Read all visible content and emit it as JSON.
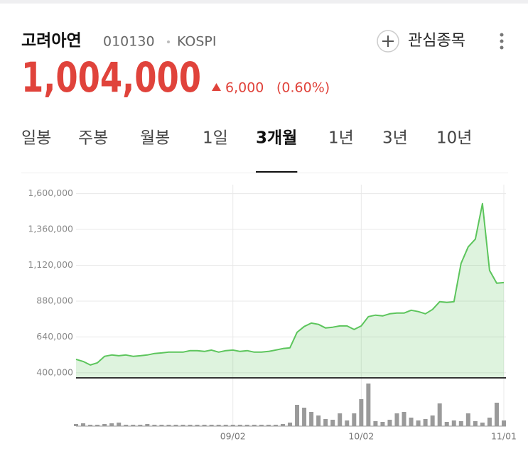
{
  "header": {
    "name": "고려아연",
    "code": "010130",
    "market": "KOSPI",
    "watch_button": "관심종목"
  },
  "price": {
    "current": "1,004,000",
    "change": "6,000",
    "change_pct": "(0.60%)"
  },
  "tabs": [
    "일봉",
    "주봉",
    "월봉",
    "1일",
    "3개월",
    "1년",
    "3년",
    "10년"
  ],
  "active_tab": 4,
  "chart_data": {
    "type": "line",
    "categories": [
      null,
      null,
      null,
      null,
      null,
      null,
      null,
      null,
      null,
      null,
      null,
      null,
      null,
      null,
      null,
      null,
      null,
      null,
      null,
      null,
      null,
      null,
      "09/02",
      null,
      null,
      null,
      null,
      null,
      null,
      null,
      null,
      null,
      null,
      null,
      null,
      null,
      null,
      null,
      null,
      null,
      "10/02",
      null,
      null,
      null,
      null,
      null,
      null,
      null,
      null,
      null,
      null,
      null,
      null,
      null,
      null,
      null,
      null,
      null,
      null,
      null,
      "11/01"
    ],
    "series": [
      {
        "color": "#5cc55c",
        "values": [
          490000,
          476000,
          452000,
          467000,
          510000,
          519000,
          514000,
          519000,
          510000,
          514000,
          519000,
          529000,
          533000,
          538000,
          538000,
          538000,
          548000,
          548000,
          543000,
          552000,
          538000,
          548000,
          552000,
          543000,
          548000,
          538000,
          538000,
          543000,
          552000,
          562000,
          567000,
          671000,
          710000,
          733000,
          724000,
          700000,
          705000,
          714000,
          714000,
          690000,
          714000,
          776000,
          786000,
          781000,
          795000,
          800000,
          800000,
          819000,
          810000,
          795000,
          824000,
          876000,
          871000,
          876000,
          1133000,
          1243000,
          1295000,
          1533000,
          1086000,
          1000000,
          1004000
        ]
      }
    ],
    "volume": {
      "color": "#9a9a9a",
      "values": [
        3,
        4,
        2,
        2,
        3,
        4,
        5,
        2,
        2,
        2,
        3,
        2,
        2,
        2,
        2,
        2,
        2,
        2,
        2,
        2,
        2,
        2,
        2,
        2,
        2,
        2,
        2,
        2,
        2,
        3,
        5,
        30,
        26,
        20,
        15,
        10,
        9,
        18,
        8,
        18,
        38,
        60,
        7,
        6,
        9,
        18,
        20,
        12,
        8,
        10,
        15,
        32,
        6,
        8,
        7,
        18,
        7,
        5,
        12,
        33,
        8
      ]
    },
    "ylim": [
      366000,
      1660000
    ],
    "yticks": [
      {
        "value": 400000,
        "label": "400,000"
      },
      {
        "value": 640000,
        "label": "640,000"
      },
      {
        "value": 880000,
        "label": "880,000"
      },
      {
        "value": 1120000,
        "label": "1,120,000"
      },
      {
        "value": 1360000,
        "label": "1,360,000"
      },
      {
        "value": 1600000,
        "label": "1,600,000"
      }
    ],
    "y2lim": [
      0,
      60
    ],
    "grid": true
  }
}
